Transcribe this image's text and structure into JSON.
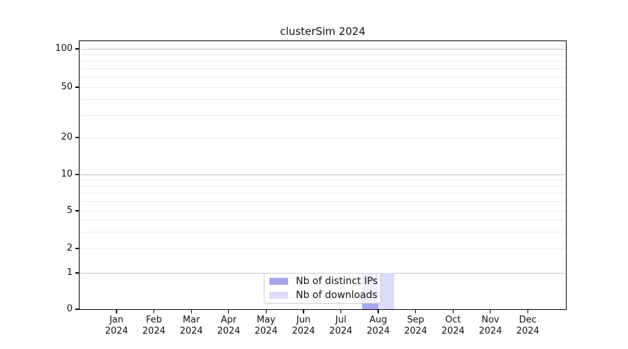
{
  "title": "clusterSim 2024",
  "chart_data": {
    "type": "bar",
    "title": "clusterSim 2024",
    "x_tick_months": [
      "Jan",
      "Feb",
      "Mar",
      "Apr",
      "May",
      "Jun",
      "Jul",
      "Aug",
      "Sep",
      "Oct",
      "Nov",
      "Dec"
    ],
    "x_tick_year": "2024",
    "y_tick_labels": [
      100,
      50,
      20,
      10,
      5,
      2,
      1,
      0
    ],
    "y_scale": "log-like (ticks at 1,2,5 per decade) with 0 baseline",
    "ylim": [
      0,
      115
    ],
    "grid": "horizontal, darker lines at powers of 10, faint minor lines at 3,4,6,7,8,9 multiples",
    "legend_position": "inside bottom-center",
    "series": [
      {
        "name": "Nb of distinct IPs",
        "color": "#a5a5ec",
        "values": [
          0,
          0,
          0,
          0,
          0,
          0,
          0,
          1,
          0,
          0,
          0,
          0
        ]
      },
      {
        "name": "Nb of downloads",
        "color": "#dcdcf8",
        "values": [
          0,
          0,
          0,
          0,
          0,
          0,
          0,
          1,
          0,
          0,
          0,
          0
        ]
      }
    ]
  },
  "legend": {
    "items": [
      {
        "label": "Nb of distinct IPs",
        "color": "#a5a5ec"
      },
      {
        "label": "Nb of downloads",
        "color": "#dcdcf8"
      }
    ]
  }
}
